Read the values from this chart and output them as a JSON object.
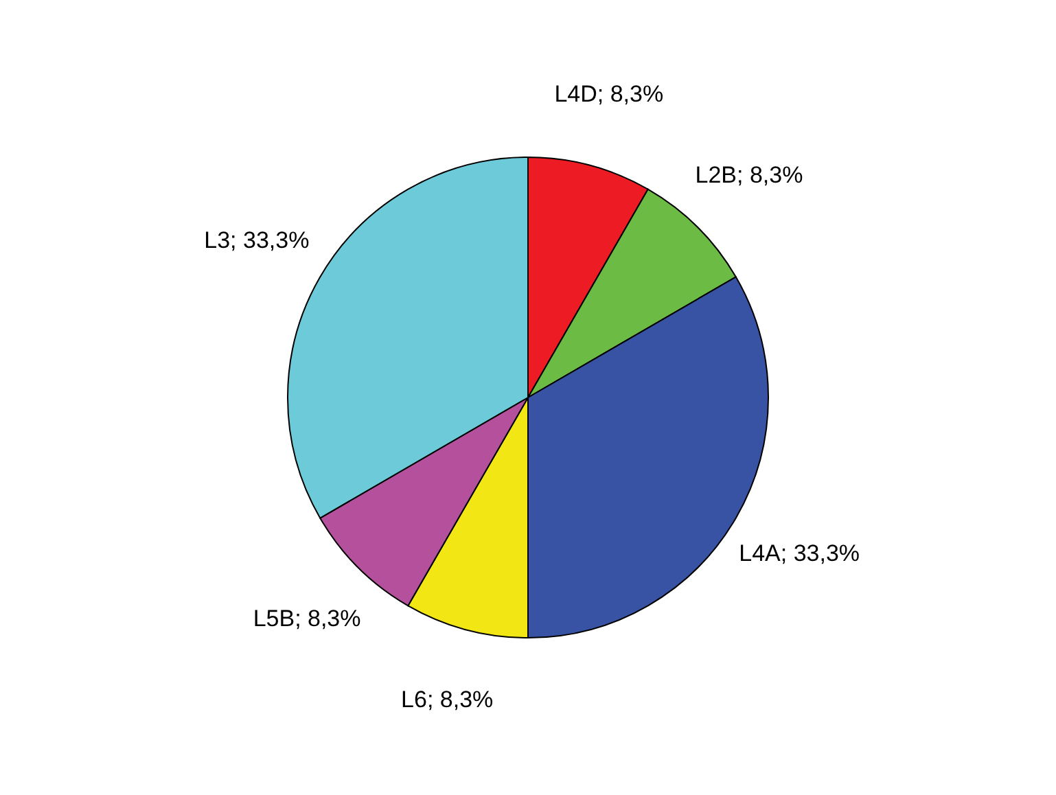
{
  "chart_data": {
    "type": "pie",
    "categories": [
      "L4D",
      "L2B",
      "L4A",
      "L6",
      "L5B",
      "L3"
    ],
    "values": [
      8.3,
      8.3,
      33.3,
      8.3,
      8.3,
      33.3
    ],
    "value_labels": [
      "8,3%",
      "8,3%",
      "33,3%",
      "8,3%",
      "8,3%",
      "33,3%"
    ],
    "colors": [
      "#ed1c24",
      "#6cbb45",
      "#3953a4",
      "#f2e615",
      "#b5519c",
      "#6dcbd9"
    ]
  }
}
